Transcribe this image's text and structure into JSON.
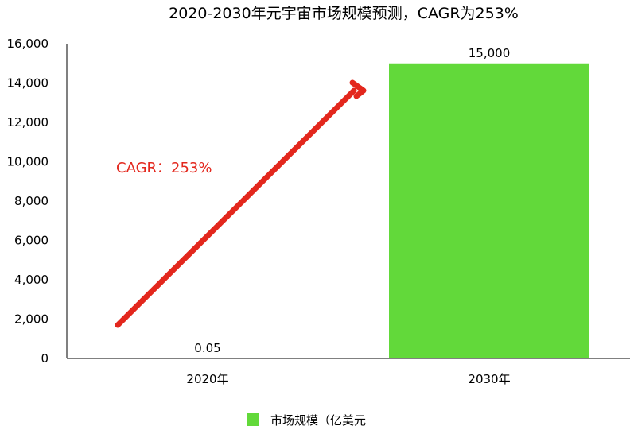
{
  "chart_data": {
    "type": "bar",
    "title": "2020-2030年元宇宙市场规模预测，CAGR为253%",
    "categories": [
      "2020年",
      "2030年"
    ],
    "series": [
      {
        "name": "市场规模（亿美元",
        "values": [
          0.05,
          15000
        ],
        "value_labels": [
          "0.05",
          "15,000"
        ],
        "color": "#62D93A"
      }
    ],
    "ylim": [
      0,
      16000
    ],
    "yticks": [
      0,
      2000,
      4000,
      6000,
      8000,
      10000,
      12000,
      14000,
      16000
    ],
    "ytick_labels": [
      "0",
      "2,000",
      "4,000",
      "6,000",
      "8,000",
      "10,000",
      "12,000",
      "14,000",
      "16,000"
    ],
    "grid": false,
    "legend_position": "bottom-center",
    "annotation": {
      "text": "CAGR：253%",
      "color": "#E3271D",
      "type": "arrow-up-right"
    }
  }
}
